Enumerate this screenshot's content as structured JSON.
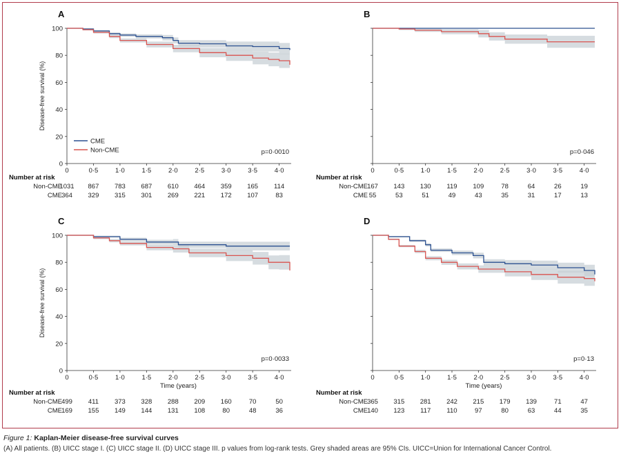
{
  "figure": {
    "caption_label": "Figure 1:",
    "caption_title": "Kaplan-Meier disease-free survival curves",
    "caption_body": "(A) All patients. (B) UICC stage I. (C) UICC stage II. (D) UICC stage III. p values from log-rank tests. Grey shaded areas are 95% CIs. UICC=Union for International Cancer Control."
  },
  "colors": {
    "cme": "#2a4f8f",
    "non_cme": "#d9534f",
    "ci": "#c8d0d6",
    "frame": "#b03a4a"
  },
  "chart_data": [
    {
      "type": "line",
      "panel": "A",
      "ylabel": "Disease-free survival (%)",
      "xlabel": "",
      "xlim": [
        0,
        4.2
      ],
      "ylim": [
        0,
        100
      ],
      "xticks": [
        "0",
        "0·5",
        "1·0",
        "1·5",
        "2·0",
        "2·5",
        "3·0",
        "3·5",
        "4·0"
      ],
      "yticks": [
        "0",
        "20",
        "40",
        "60",
        "80",
        "100"
      ],
      "p_value": "p=0·0010",
      "legend": {
        "position": "bottom-left",
        "entries": [
          "CME",
          "Non-CME"
        ]
      },
      "series": [
        {
          "name": "CME",
          "x": [
            0,
            0.3,
            0.5,
            0.8,
            1.0,
            1.3,
            1.8,
            2.0,
            2.1,
            2.5,
            3.0,
            3.5,
            4.0,
            4.2
          ],
          "y": [
            100,
            99.5,
            98,
            96,
            95,
            94,
            93,
            91,
            89,
            88.5,
            87,
            86.5,
            85,
            84
          ]
        },
        {
          "name": "Non-CME",
          "x": [
            0,
            0.3,
            0.5,
            0.8,
            1.0,
            1.5,
            2.0,
            2.5,
            3.0,
            3.5,
            3.8,
            4.0,
            4.2
          ],
          "y": [
            100,
            99,
            97,
            94,
            91,
            88,
            85,
            82,
            80,
            78,
            77,
            76,
            73
          ]
        }
      ],
      "risk_table": {
        "header": "Number at risk",
        "rows": [
          {
            "label": "Non-CME",
            "values": [
              "1031",
              "867",
              "783",
              "687",
              "610",
              "464",
              "359",
              "165",
              "114"
            ]
          },
          {
            "label": "CME",
            "values": [
              "364",
              "329",
              "315",
              "301",
              "269",
              "221",
              "172",
              "107",
              "83"
            ]
          }
        ]
      }
    },
    {
      "type": "line",
      "panel": "B",
      "ylabel": "",
      "xlabel": "",
      "xlim": [
        0,
        4.2
      ],
      "ylim": [
        0,
        100
      ],
      "xticks": [
        "0",
        "0·5",
        "1·0",
        "1·5",
        "2·0",
        "2·5",
        "3·0",
        "3·5",
        "4·0"
      ],
      "yticks": [],
      "p_value": "p=0·046",
      "series": [
        {
          "name": "CME",
          "x": [
            0,
            4.2
          ],
          "y": [
            100,
            100
          ]
        },
        {
          "name": "Non-CME",
          "x": [
            0,
            0.5,
            0.8,
            1.3,
            2.0,
            2.2,
            2.5,
            3.3,
            4.2
          ],
          "y": [
            100,
            99.5,
            98.5,
            97.5,
            96,
            94,
            92,
            90,
            90
          ]
        }
      ],
      "risk_table": {
        "header": "Number at risk",
        "rows": [
          {
            "label": "Non-CME",
            "values": [
              "167",
              "143",
              "130",
              "119",
              "109",
              "78",
              "64",
              "26",
              "19"
            ]
          },
          {
            "label": "CME",
            "values": [
              "55",
              "53",
              "51",
              "49",
              "43",
              "35",
              "31",
              "17",
              "13"
            ]
          }
        ]
      }
    },
    {
      "type": "line",
      "panel": "C",
      "ylabel": "Disease-free survival (%)",
      "xlabel": "Time (years)",
      "xlim": [
        0,
        4.2
      ],
      "ylim": [
        0,
        100
      ],
      "xticks": [
        "0",
        "0·5",
        "1·0",
        "1·5",
        "2·0",
        "2·5",
        "3·0",
        "3·5",
        "4·0"
      ],
      "yticks": [
        "0",
        "20",
        "40",
        "60",
        "80",
        "100"
      ],
      "p_value": "p=0·0033",
      "series": [
        {
          "name": "CME",
          "x": [
            0,
            0.5,
            1.0,
            1.5,
            2.0,
            2.1,
            3.0,
            4.2
          ],
          "y": [
            100,
            99,
            97,
            95,
            95,
            93,
            92,
            92
          ]
        },
        {
          "name": "Non-CME",
          "x": [
            0,
            0.5,
            0.8,
            1.0,
            1.5,
            2.0,
            2.3,
            3.0,
            3.5,
            3.8,
            4.0,
            4.2
          ],
          "y": [
            100,
            98,
            96,
            94,
            91,
            90,
            87,
            85,
            83,
            80,
            80,
            74
          ]
        }
      ],
      "risk_table": {
        "header": "Number at risk",
        "rows": [
          {
            "label": "Non-CME",
            "values": [
              "499",
              "411",
              "373",
              "328",
              "288",
              "209",
              "160",
              "70",
              "50"
            ]
          },
          {
            "label": "CME",
            "values": [
              "169",
              "155",
              "149",
              "144",
              "131",
              "108",
              "80",
              "48",
              "36"
            ]
          }
        ]
      }
    },
    {
      "type": "line",
      "panel": "D",
      "ylabel": "",
      "xlabel": "Time (years)",
      "xlim": [
        0,
        4.2
      ],
      "ylim": [
        0,
        100
      ],
      "xticks": [
        "0",
        "0·5",
        "1·0",
        "1·5",
        "2·0",
        "2·5",
        "3·0",
        "3·5",
        "4·0"
      ],
      "yticks": [],
      "p_value": "p=0·13",
      "series": [
        {
          "name": "CME",
          "x": [
            0,
            0.3,
            0.7,
            1.0,
            1.1,
            1.5,
            1.9,
            2.1,
            2.5,
            3.0,
            3.5,
            4.0,
            4.2
          ],
          "y": [
            100,
            99,
            96,
            93,
            89,
            87,
            85,
            80,
            79,
            78,
            76,
            74,
            71
          ]
        },
        {
          "name": "Non-CME",
          "x": [
            0,
            0.3,
            0.5,
            0.8,
            1.0,
            1.3,
            1.6,
            2.0,
            2.5,
            3.0,
            3.5,
            4.0,
            4.2
          ],
          "y": [
            100,
            97,
            92,
            88,
            83,
            80,
            77,
            75,
            73,
            71,
            69,
            68,
            66
          ]
        }
      ],
      "risk_table": {
        "header": "Number at risk",
        "rows": [
          {
            "label": "Non-CME",
            "values": [
              "365",
              "315",
              "281",
              "242",
              "215",
              "179",
              "139",
              "71",
              "47"
            ]
          },
          {
            "label": "CME",
            "values": [
              "140",
              "123",
              "117",
              "110",
              "97",
              "80",
              "63",
              "44",
              "35"
            ]
          }
        ]
      }
    }
  ]
}
